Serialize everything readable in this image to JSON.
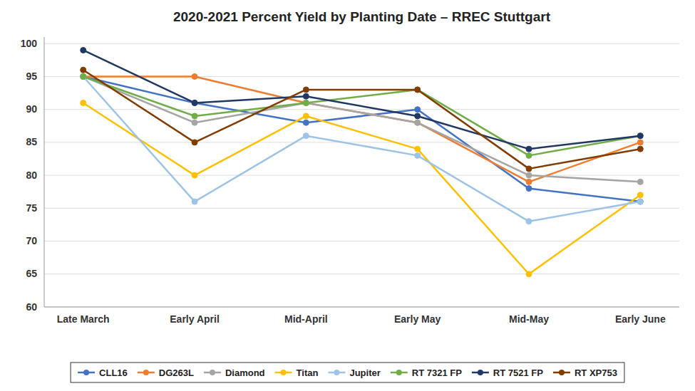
{
  "chart_data": {
    "type": "line",
    "title": "2020-2021 Percent Yield by Planting Date – RREC Stuttgart",
    "categories": [
      "Late March",
      "Early April",
      "Mid-April",
      "Early May",
      "Mid-May",
      "Early June"
    ],
    "series": [
      {
        "name": "CLL16",
        "color": "#4472C4",
        "values": [
          95,
          91,
          88,
          90,
          78,
          76
        ]
      },
      {
        "name": "DG263L",
        "color": "#ED7D31",
        "values": [
          95,
          95,
          91,
          88,
          79,
          85
        ]
      },
      {
        "name": "Diamond",
        "color": "#A5A5A5",
        "values": [
          95,
          88,
          91,
          88,
          80,
          79
        ]
      },
      {
        "name": "Titan",
        "color": "#FFC000",
        "values": [
          91,
          80,
          89,
          84,
          65,
          77
        ]
      },
      {
        "name": "Jupiter",
        "color": "#9DC3E6",
        "values": [
          95,
          76,
          86,
          83,
          73,
          76
        ]
      },
      {
        "name": "RT 7321 FP",
        "color": "#70AD47",
        "values": [
          95,
          89,
          91,
          93,
          83,
          86
        ]
      },
      {
        "name": "RT 7521 FP",
        "color": "#1F3864",
        "values": [
          99,
          91,
          92,
          89,
          84,
          86
        ]
      },
      {
        "name": "RT XP753",
        "color": "#833C00",
        "values": [
          96,
          85,
          93,
          93,
          81,
          84
        ]
      }
    ],
    "ylim": [
      60,
      101
    ],
    "yticks": [
      60,
      65,
      70,
      75,
      80,
      85,
      90,
      95,
      100
    ],
    "grid": true,
    "legend": "bottom",
    "marker": "circle"
  }
}
